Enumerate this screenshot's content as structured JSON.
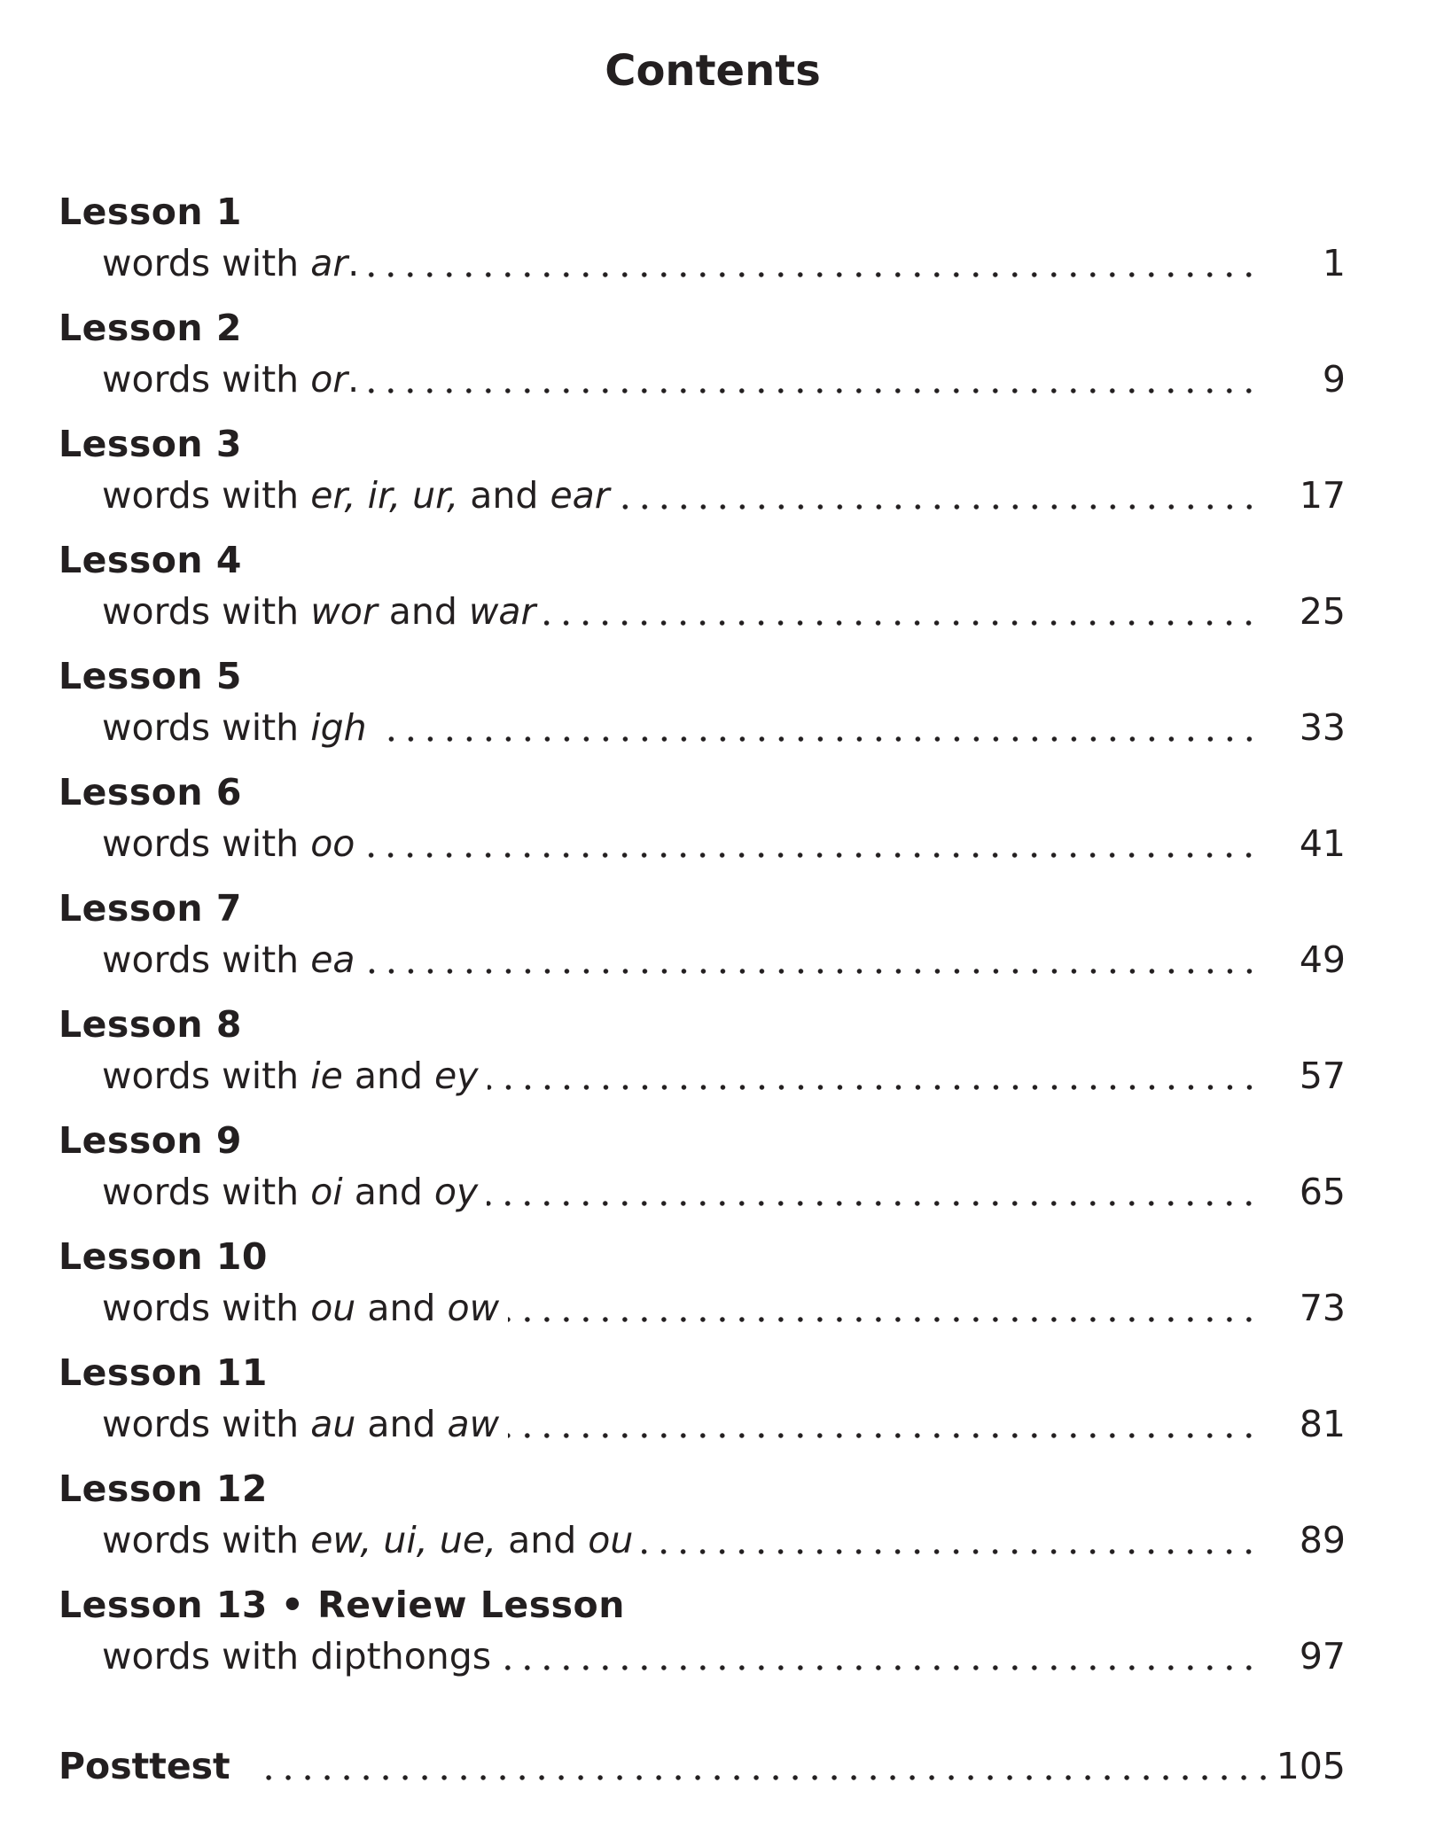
{
  "title": "Contents",
  "lessons": [
    {
      "heading": "Lesson 1",
      "subtitle": [
        {
          "text": "words with ",
          "italic": false
        },
        {
          "text": "ar",
          "italic": true
        },
        {
          "text": ".",
          "italic": false
        }
      ],
      "page": "1"
    },
    {
      "heading": "Lesson 2",
      "subtitle": [
        {
          "text": "words with ",
          "italic": false
        },
        {
          "text": "or",
          "italic": true
        },
        {
          "text": ".",
          "italic": false
        }
      ],
      "page": "9"
    },
    {
      "heading": "Lesson 3",
      "subtitle": [
        {
          "text": "words with ",
          "italic": false
        },
        {
          "text": "er, ir, ur,",
          "italic": true
        },
        {
          "text": " and ",
          "italic": false
        },
        {
          "text": "ear",
          "italic": true
        }
      ],
      "page": "17"
    },
    {
      "heading": "Lesson 4",
      "subtitle": [
        {
          "text": "words with ",
          "italic": false
        },
        {
          "text": "wor",
          "italic": true
        },
        {
          "text": " and ",
          "italic": false
        },
        {
          "text": "war",
          "italic": true
        }
      ],
      "page": "25"
    },
    {
      "heading": "Lesson 5",
      "subtitle": [
        {
          "text": "words with ",
          "italic": false
        },
        {
          "text": "igh",
          "italic": true
        }
      ],
      "page": "33"
    },
    {
      "heading": "Lesson 6",
      "subtitle": [
        {
          "text": "words with ",
          "italic": false
        },
        {
          "text": "oo",
          "italic": true
        }
      ],
      "page": "41"
    },
    {
      "heading": "Lesson 7",
      "subtitle": [
        {
          "text": "words with ",
          "italic": false
        },
        {
          "text": "ea",
          "italic": true
        }
      ],
      "page": "49"
    },
    {
      "heading": "Lesson 8",
      "subtitle": [
        {
          "text": "words with ",
          "italic": false
        },
        {
          "text": "ie",
          "italic": true
        },
        {
          "text": " and ",
          "italic": false
        },
        {
          "text": "ey",
          "italic": true
        }
      ],
      "page": "57"
    },
    {
      "heading": "Lesson 9",
      "subtitle": [
        {
          "text": "words with ",
          "italic": false
        },
        {
          "text": "oi",
          "italic": true
        },
        {
          "text": " and ",
          "italic": false
        },
        {
          "text": "oy",
          "italic": true
        }
      ],
      "page": "65"
    },
    {
      "heading": "Lesson 10",
      "subtitle": [
        {
          "text": "words with ",
          "italic": false
        },
        {
          "text": "ou",
          "italic": true
        },
        {
          "text": " and ",
          "italic": false
        },
        {
          "text": "ow",
          "italic": true
        }
      ],
      "page": "73"
    },
    {
      "heading": "Lesson 11",
      "subtitle": [
        {
          "text": "words with ",
          "italic": false
        },
        {
          "text": "au",
          "italic": true
        },
        {
          "text": " and ",
          "italic": false
        },
        {
          "text": "aw",
          "italic": true
        }
      ],
      "page": "81"
    },
    {
      "heading": "Lesson 12",
      "subtitle": [
        {
          "text": "words with ",
          "italic": false
        },
        {
          "text": "ew, ui, ue,",
          "italic": true
        },
        {
          "text": " and ",
          "italic": false
        },
        {
          "text": "ou",
          "italic": true
        }
      ],
      "page": "89"
    },
    {
      "heading": "Lesson 13 • Review Lesson",
      "subtitle": [
        {
          "text": "words with dipthongs",
          "italic": false
        }
      ],
      "page": "97"
    }
  ],
  "posttest": {
    "label": "Posttest",
    "page": "105"
  }
}
